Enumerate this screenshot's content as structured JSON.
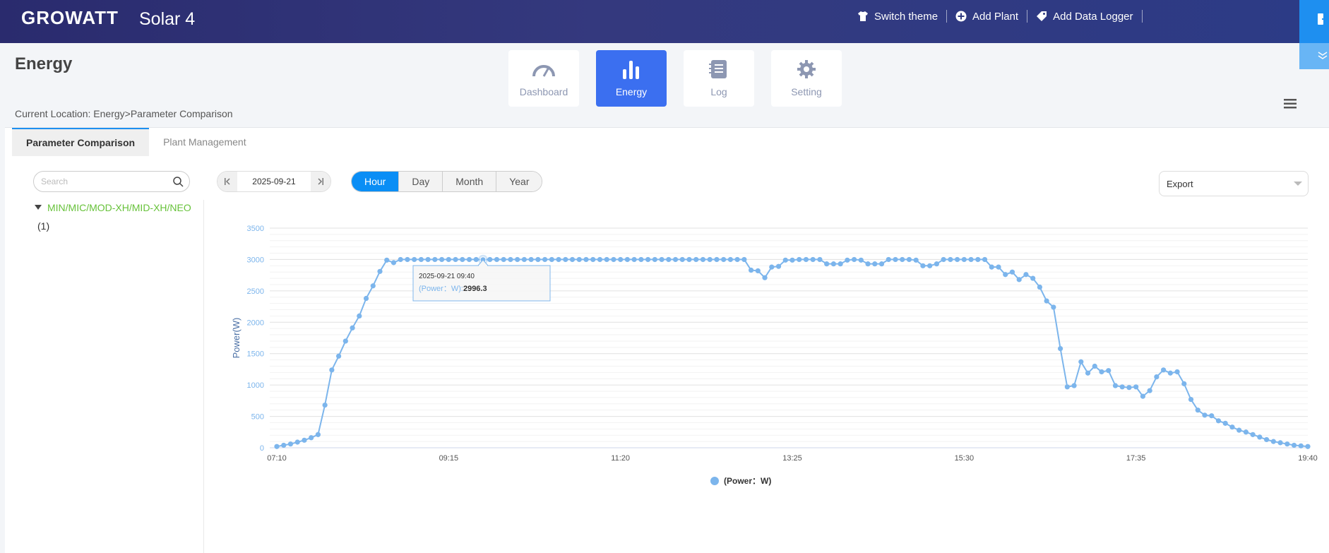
{
  "header": {
    "logo": "GROWATT",
    "plant_name": "Solar 4",
    "actions": [
      {
        "label": "Switch theme",
        "icon": "shirt-icon"
      },
      {
        "label": "Add Plant",
        "icon": "plus-circle-icon"
      },
      {
        "label": "Add Data Logger",
        "icon": "tag-icon"
      }
    ]
  },
  "page": {
    "title": "Energy",
    "location": "Current Location: Energy>Parameter Comparison"
  },
  "nav": [
    {
      "label": "Dashboard",
      "icon": "speedometer-icon"
    },
    {
      "label": "Energy",
      "icon": "bar-chart-icon",
      "active": true
    },
    {
      "label": "Log",
      "icon": "notebook-icon"
    },
    {
      "label": "Setting",
      "icon": "gear-icon"
    }
  ],
  "tabs": [
    {
      "label": "Parameter Comparison",
      "active": true
    },
    {
      "label": "Plant Management"
    }
  ],
  "search": {
    "placeholder": "Search",
    "value": ""
  },
  "tree": {
    "node": "MIN/MIC/MOD-XH/MID-XH/NEO",
    "count": "(1)"
  },
  "date": "2025-09-21",
  "periods": [
    {
      "label": "Hour",
      "active": true
    },
    {
      "label": "Day"
    },
    {
      "label": "Month"
    },
    {
      "label": "Year"
    }
  ],
  "export": {
    "label": "Export"
  },
  "colors": {
    "accent": "#3b6ff0",
    "series": "#7cb5ec",
    "tree_green": "#67c23a"
  },
  "tooltip": {
    "time": "2025-09-21 09:40",
    "series": "(Power：W):",
    "value": "2996.3"
  },
  "chart_data": {
    "type": "line",
    "ylabel": "Power(W)",
    "ylim": [
      0,
      3500
    ],
    "yticks": [
      0,
      500,
      1000,
      1500,
      2000,
      2500,
      3000,
      3500
    ],
    "xlabels": [
      "07:10",
      "09:15",
      "11:20",
      "13:25",
      "15:30",
      "17:35",
      "19:40"
    ],
    "x_start": "07:10",
    "x_step_minutes": 5,
    "series": [
      {
        "name": "(Power：W)",
        "values": [
          20,
          40,
          60,
          90,
          120,
          160,
          210,
          680,
          1240,
          1460,
          1700,
          1910,
          2100,
          2380,
          2580,
          2810,
          2990,
          2950,
          3000,
          3000,
          3000,
          3000,
          3000,
          3000,
          3000,
          3000,
          3000,
          3000,
          3000,
          3000,
          2996,
          3000,
          3000,
          3000,
          3000,
          3000,
          3000,
          3000,
          3000,
          3000,
          3000,
          3000,
          3000,
          3000,
          3000,
          3000,
          3000,
          3000,
          3000,
          3000,
          3000,
          3000,
          3000,
          3000,
          3000,
          3000,
          3000,
          3000,
          3000,
          3000,
          3000,
          3000,
          3000,
          3000,
          3000,
          3000,
          3000,
          3000,
          3000,
          2830,
          2820,
          2710,
          2880,
          2890,
          2990,
          2990,
          3000,
          3000,
          3000,
          3000,
          2930,
          2930,
          2930,
          2990,
          3000,
          2990,
          2930,
          2930,
          2930,
          3000,
          3000,
          3000,
          3000,
          2990,
          2900,
          2900,
          2930,
          3000,
          3000,
          3000,
          3000,
          3000,
          3000,
          3000,
          2880,
          2880,
          2760,
          2800,
          2680,
          2760,
          2700,
          2560,
          2340,
          2240,
          1580,
          970,
          990,
          1370,
          1190,
          1300,
          1210,
          1230,
          990,
          970,
          960,
          970,
          820,
          910,
          1130,
          1240,
          1190,
          1210,
          1020,
          770,
          600,
          520,
          510,
          430,
          390,
          330,
          280,
          250,
          210,
          170,
          130,
          100,
          80,
          60,
          40,
          30,
          20
        ]
      }
    ],
    "grid": true,
    "legend": "bottom-center"
  }
}
